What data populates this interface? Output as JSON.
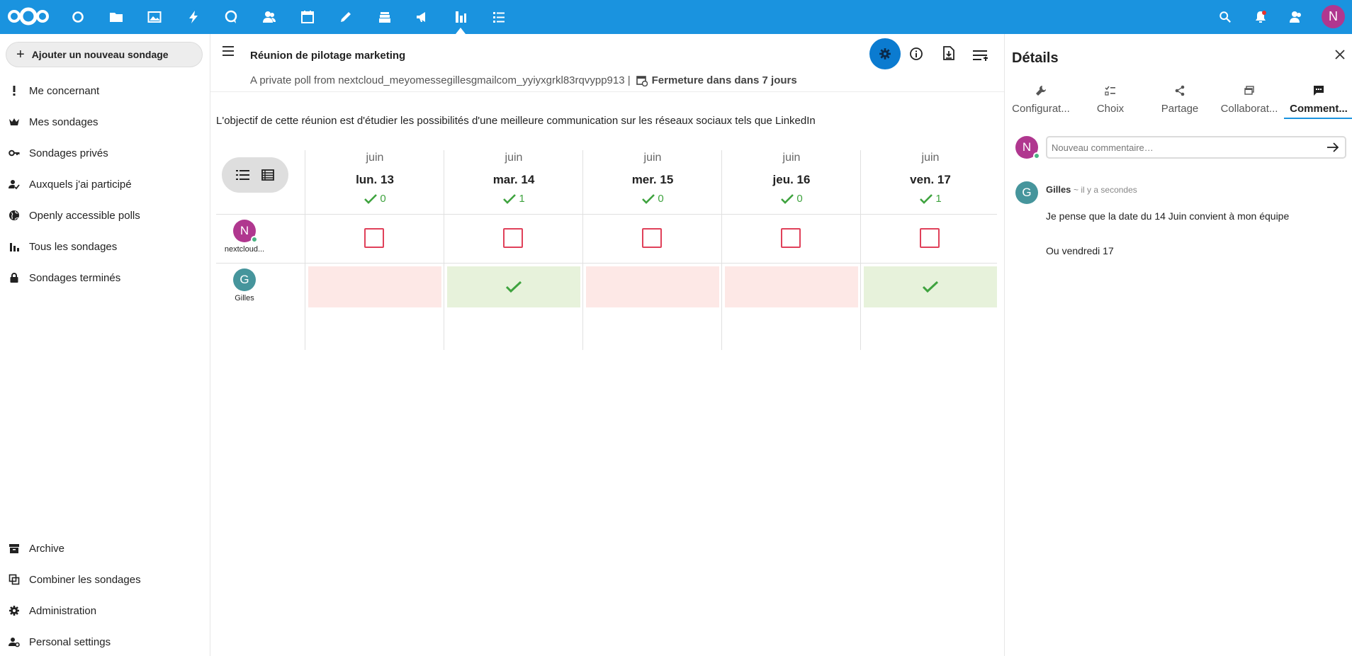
{
  "topbar": {
    "apps": [
      "dashboard-icon",
      "files-icon",
      "photos-icon",
      "activity-icon",
      "talk-icon",
      "contacts-icon",
      "calendar-icon",
      "notes-icon",
      "deck-icon",
      "announcements-icon",
      "polls-icon",
      "tasks-icon"
    ],
    "active_app": "polls-icon",
    "user_initial": "N"
  },
  "sidebar": {
    "new_poll_label": "Ajouter un nouveau sondage",
    "items": [
      {
        "label": "Me concernant",
        "icon": "exclamation-icon"
      },
      {
        "label": "Mes sondages",
        "icon": "crown-icon"
      },
      {
        "label": "Sondages privés",
        "icon": "key-icon"
      },
      {
        "label": "Auxquels j'ai participé",
        "icon": "user-check-icon"
      },
      {
        "label": "Openly accessible polls",
        "icon": "globe-icon"
      },
      {
        "label": "Tous les sondages",
        "icon": "bar-chart-icon"
      },
      {
        "label": "Sondages terminés",
        "icon": "lock-icon"
      }
    ],
    "bottom_items": [
      {
        "label": "Archive",
        "icon": "archive-icon"
      },
      {
        "label": "Combiner les sondages",
        "icon": "combine-icon"
      },
      {
        "label": "Administration",
        "icon": "gear-icon"
      },
      {
        "label": "Personal settings",
        "icon": "user-settings-icon"
      }
    ]
  },
  "poll": {
    "title": "Réunion de pilotage marketing",
    "subtitle": "A private poll from nextcloud_meyomessegilles​gmailcom_yyiyxgrkl83rqvypp913 |",
    "closing": "Fermeture dans dans 7 jours",
    "description": "L'objectif de cette réunion est d'étudier les possibilités d'une meilleure communication sur les réseaux sociaux tels que LinkedIn",
    "dates": [
      {
        "month": "juin",
        "day": "lun. 13",
        "yes": "0"
      },
      {
        "month": "juin",
        "day": "mar. 14",
        "yes": "1"
      },
      {
        "month": "juin",
        "day": "mer. 15",
        "yes": "0"
      },
      {
        "month": "juin",
        "day": "jeu. 16",
        "yes": "0"
      },
      {
        "month": "juin",
        "day": "ven. 17",
        "yes": "1"
      }
    ],
    "participants": [
      {
        "initial": "N",
        "name": "nextcloud...",
        "color": "#b0378f",
        "votes": [
          "box",
          "box",
          "box",
          "box",
          "box"
        ]
      },
      {
        "initial": "G",
        "name": "Gilles",
        "color": "#46959c",
        "votes": [
          "no",
          "yes",
          "no",
          "no",
          "yes"
        ]
      }
    ]
  },
  "details": {
    "title": "Détails",
    "tabs": [
      {
        "label": "Configurat...",
        "icon": "wrench-icon"
      },
      {
        "label": "Choix",
        "icon": "checklist-icon"
      },
      {
        "label": "Partage",
        "icon": "share-icon"
      },
      {
        "label": "Collaborat...",
        "icon": "collaboration-icon"
      },
      {
        "label": "Comment...",
        "icon": "comment-icon"
      }
    ],
    "comment_placeholder": "Nouveau commentaire…",
    "current_user_initial": "N",
    "comment": {
      "initial": "G",
      "author": "Gilles",
      "time": "~ il y a secondes",
      "lines": [
        "Je pense que la date du 14 Juin convient à mon équipe",
        "Ou vendredi 17"
      ]
    }
  },
  "colors": {
    "topbar": "#1a93df",
    "yes_bg": "#e7f2db",
    "no_bg": "#fde8e6",
    "vote_box": "#e0415a",
    "yes_check": "#3fa33f"
  }
}
